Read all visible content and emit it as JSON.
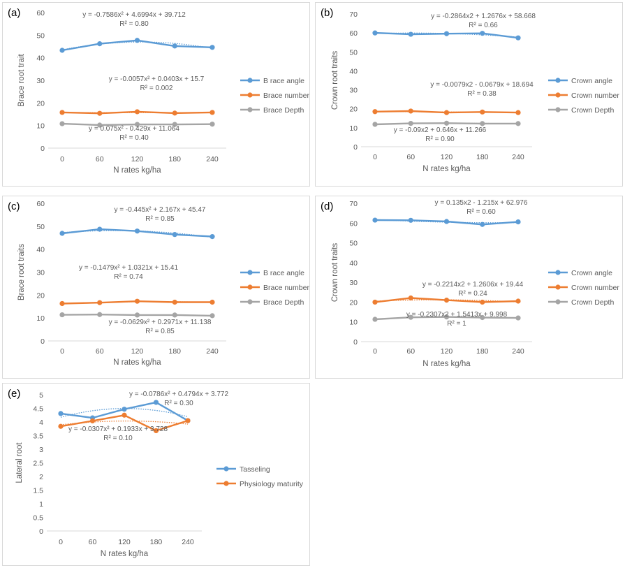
{
  "colors": {
    "blue": "#5B9BD5",
    "orange": "#ED7D31",
    "gray": "#A5A5A5",
    "grid": "#d9d9d9",
    "text": "#595959"
  },
  "chart_data": [
    {
      "id": "a",
      "panel_label": "(a)",
      "type": "line",
      "xlabel": "N rates kg/ha",
      "ylabel": "Brace root trait",
      "categories": [
        "0",
        "60",
        "120",
        "180",
        "240"
      ],
      "ylim": [
        0,
        60
      ],
      "yticks": [
        0,
        10,
        20,
        30,
        40,
        50,
        60
      ],
      "grid": false,
      "legend_position": "right",
      "series": [
        {
          "name": "B race angle",
          "color": "blue",
          "values": [
            43.3,
            46.2,
            47.7,
            45.2,
            44.6
          ],
          "trendline": "poly2",
          "eq": "y = -0.7586x² + 4.6994x + 39.712",
          "r2": "R² = 0.80"
        },
        {
          "name": "Brace number",
          "color": "orange",
          "values": [
            15.8,
            15.4,
            16.1,
            15.5,
            15.8
          ],
          "trendline": "poly2",
          "eq": "y = -0.0057x² + 0.0403x + 15.7",
          "r2": "R² = 0.002"
        },
        {
          "name": "Brace Depth",
          "color": "gray",
          "values": [
            10.8,
            10.2,
            10.5,
            10.5,
            10.6
          ],
          "trendline": "poly2",
          "eq": "y = 0.075x² - 0.429x + 11.064",
          "r2": "R² = 0.40"
        }
      ]
    },
    {
      "id": "b",
      "panel_label": "(b)",
      "type": "line",
      "xlabel": "N rates kg/ha",
      "ylabel": "Crown root traits",
      "categories": [
        "0",
        "60",
        "120",
        "180",
        "240"
      ],
      "ylim": [
        0,
        70
      ],
      "yticks": [
        0,
        10,
        20,
        30,
        40,
        50,
        60,
        70
      ],
      "grid": false,
      "legend_position": "right",
      "series": [
        {
          "name": "Crown angle",
          "color": "blue",
          "values": [
            60.0,
            59.3,
            59.6,
            59.8,
            57.4
          ],
          "trendline": "poly2",
          "eq": "y = -0.2864x2 + 1.2676x + 58.668",
          "r2": "R² = 0.66"
        },
        {
          "name": "Crown  number",
          "color": "orange",
          "values": [
            18.5,
            18.8,
            18.0,
            18.3,
            18.0
          ],
          "trendline": "poly2",
          "eq": "y = -0.0079x2 - 0.0679x + 18.694",
          "r2": "R² = 0.38"
        },
        {
          "name": "Crown Depth",
          "color": "gray",
          "values": [
            11.8,
            12.3,
            12.4,
            12.2,
            12.2
          ],
          "trendline": "poly2",
          "eq": "y = -0.09x2 + 0.646x + 11.266",
          "r2": "R² = 0.90"
        }
      ]
    },
    {
      "id": "c",
      "panel_label": "(c)",
      "type": "line",
      "xlabel": "N rates kg/ha",
      "ylabel": "Brace root traits",
      "categories": [
        "0",
        "60",
        "120",
        "180",
        "240"
      ],
      "ylim": [
        0,
        60
      ],
      "yticks": [
        0,
        10,
        20,
        30,
        40,
        50,
        60
      ],
      "grid": false,
      "legend_position": "right",
      "series": [
        {
          "name": "B race angle",
          "color": "blue",
          "values": [
            46.9,
            48.7,
            47.9,
            46.4,
            45.5
          ],
          "trendline": "poly2",
          "eq": "y = -0.445x² + 2.167x + 45.47",
          "r2": "R² = 0.85"
        },
        {
          "name": "Brace number",
          "color": "orange",
          "values": [
            16.3,
            16.7,
            17.3,
            16.9,
            16.9
          ],
          "trendline": "poly2",
          "eq": "y = -0.1479x² + 1.0321x + 15.41",
          "r2": "R² = 0.74"
        },
        {
          "name": "Brace Depth",
          "color": "gray",
          "values": [
            11.4,
            11.5,
            11.3,
            11.3,
            11.0
          ],
          "trendline": "poly2",
          "eq": "y = -0.0629x² + 0.2971x + 11.138",
          "r2": "R² = 0.85"
        }
      ]
    },
    {
      "id": "d",
      "panel_label": "(d)",
      "type": "line",
      "xlabel": "N rates kg/ha",
      "ylabel": "Crown root traits",
      "categories": [
        "0",
        "60",
        "120",
        "180",
        "240"
      ],
      "ylim": [
        0,
        70
      ],
      "yticks": [
        0,
        10,
        20,
        30,
        40,
        50,
        60,
        70
      ],
      "grid": false,
      "legend_position": "right",
      "series": [
        {
          "name": "Crown angle",
          "color": "blue",
          "values": [
            61.5,
            61.4,
            60.8,
            59.3,
            60.6
          ],
          "trendline": "poly2",
          "eq": "y = 0.135x2 - 1.215x + 62.976",
          "r2": "R² = 0.60"
        },
        {
          "name": "Crown  number",
          "color": "orange",
          "values": [
            20.0,
            22.1,
            21.0,
            20.0,
            20.5
          ],
          "trendline": "poly2",
          "eq": "y = -0.2214x2 + 1.2606x + 19.44",
          "r2": "R² = 0.24"
        },
        {
          "name": "Crown Depth",
          "color": "gray",
          "values": [
            11.3,
            12.3,
            12.5,
            12.2,
            12.0
          ],
          "trendline": "poly2",
          "eq": "y = -0.2307x2 + 1.5413x + 9.998",
          "r2": "R² = 1"
        }
      ]
    },
    {
      "id": "e",
      "panel_label": "(e)",
      "type": "line",
      "xlabel": "N rates kg/ha",
      "ylabel": "Lateral root",
      "categories": [
        "0",
        "60",
        "120",
        "180",
        "240"
      ],
      "ylim": [
        0,
        5
      ],
      "yticks": [
        0,
        0.5,
        1,
        1.5,
        2,
        2.5,
        3,
        3.5,
        4,
        4.5,
        5
      ],
      "grid": false,
      "legend_position": "right",
      "series": [
        {
          "name": "Tasseling",
          "color": "blue",
          "values": [
            4.31,
            4.15,
            4.47,
            4.72,
            4.05
          ],
          "trendline": "poly2",
          "eq": "y = -0.0786x² + 0.4794x + 3.772",
          "r2": "R² = 0.30"
        },
        {
          "name": "Physiology maturity",
          "color": "orange",
          "values": [
            3.84,
            4.04,
            4.25,
            3.68,
            4.05
          ],
          "trendline": "poly2",
          "eq": "y = -0.0307x² + 0.1933x + 3.728",
          "r2": "R² = 0.10"
        }
      ]
    }
  ]
}
